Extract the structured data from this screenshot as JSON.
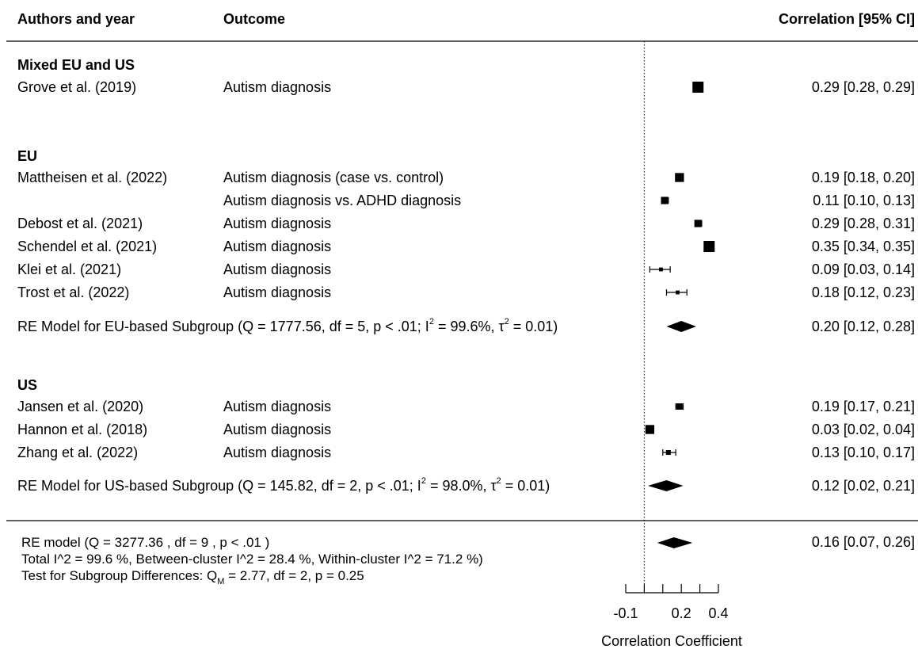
{
  "chart_data": {
    "type": "forest",
    "columns": {
      "authors": "Authors and year",
      "outcome": "Outcome",
      "estimate": "Correlation [95% CI]"
    },
    "xlabel": "Correlation Coefficient",
    "xlim": [
      -0.1,
      0.4
    ],
    "x_ticks": [
      -0.1,
      0.0,
      0.1,
      0.2,
      0.3,
      0.4
    ],
    "x_tick_labels": [
      {
        "value": -0.1,
        "label": "-0.1"
      },
      {
        "value": 0.2,
        "label": "0.2"
      },
      {
        "value": 0.4,
        "label": "0.4"
      }
    ],
    "reference_line": 0,
    "groups": [
      {
        "name": "Mixed EU and US",
        "studies": [
          {
            "author": "Grove et al. (2019)",
            "outcome": "Autism diagnosis",
            "estimate": 0.29,
            "ci_low": 0.28,
            "ci_high": 0.29,
            "label": "0.29 [0.28, 0.29]"
          }
        ]
      },
      {
        "name": "EU",
        "studies": [
          {
            "author": "Mattheisen et al. (2022)",
            "outcome": "Autism diagnosis (case vs. control)",
            "estimate": 0.19,
            "ci_low": 0.18,
            "ci_high": 0.2,
            "label": "0.19 [0.18, 0.20]"
          },
          {
            "author": "",
            "outcome": "Autism diagnosis vs. ADHD diagnosis",
            "estimate": 0.11,
            "ci_low": 0.1,
            "ci_high": 0.13,
            "label": "0.11 [0.10, 0.13]"
          },
          {
            "author": "Debost et al. (2021)",
            "outcome": "Autism diagnosis",
            "estimate": 0.29,
            "ci_low": 0.28,
            "ci_high": 0.31,
            "label": "0.29 [0.28, 0.31]"
          },
          {
            "author": "Schendel et al. (2021)",
            "outcome": "Autism diagnosis",
            "estimate": 0.35,
            "ci_low": 0.34,
            "ci_high": 0.35,
            "label": "0.35 [0.34, 0.35]"
          },
          {
            "author": "Klei et al. (2021)",
            "outcome": "Autism diagnosis",
            "estimate": 0.09,
            "ci_low": 0.03,
            "ci_high": 0.14,
            "label": "0.09 [0.03, 0.14]"
          },
          {
            "author": "Trost et al. (2022)",
            "outcome": "Autism diagnosis",
            "estimate": 0.18,
            "ci_low": 0.12,
            "ci_high": 0.23,
            "label": "0.18 [0.12, 0.23]"
          }
        ],
        "summary": {
          "label_main": "RE Model for EU-based Subgroup (Q = 1777.56, df = 5, p < .01; I",
          "label_mid": " = 99.6%, τ",
          "label_end": " = 0.01)",
          "sup": "2",
          "estimate": 0.2,
          "ci_low": 0.12,
          "ci_high": 0.28,
          "label": "0.20 [0.12, 0.28]"
        }
      },
      {
        "name": "US",
        "studies": [
          {
            "author": "Jansen et al. (2020)",
            "outcome": "Autism diagnosis",
            "estimate": 0.19,
            "ci_low": 0.17,
            "ci_high": 0.21,
            "label": "0.19 [0.17, 0.21]"
          },
          {
            "author": "Hannon et al. (2018)",
            "outcome": "Autism diagnosis",
            "estimate": 0.03,
            "ci_low": 0.02,
            "ci_high": 0.04,
            "label": "0.03 [0.02, 0.04]"
          },
          {
            "author": "Zhang et al. (2022)",
            "outcome": "Autism diagnosis",
            "estimate": 0.13,
            "ci_low": 0.1,
            "ci_high": 0.17,
            "label": "0.13 [0.10, 0.17]"
          }
        ],
        "summary": {
          "label_main": "RE Model for US-based Subgroup (Q = 145.82, df = 2, p < .01; I",
          "label_mid": " = 98.0%, τ",
          "label_end": " = 0.01)",
          "sup": "2",
          "estimate": 0.12,
          "ci_low": 0.02,
          "ci_high": 0.21,
          "label": "0.12 [0.02, 0.21]"
        }
      }
    ],
    "overall": {
      "line1": "RE model  (Q = 3277.36 , df = 9 , p < .01 )",
      "line2": "Total I^2 = 99.6 %,  Between-cluster I^2 = 28.4 %,  Within-cluster I^2 = 71.2 %)",
      "line3_a": "Test for Subgroup Differences: Q",
      "line3_sub": "M",
      "line3_b": " = 2.77, df = 2, p = 0.25",
      "estimate": 0.16,
      "ci_low": 0.07,
      "ci_high": 0.26,
      "label": "0.16 [0.07, 0.26]"
    }
  }
}
